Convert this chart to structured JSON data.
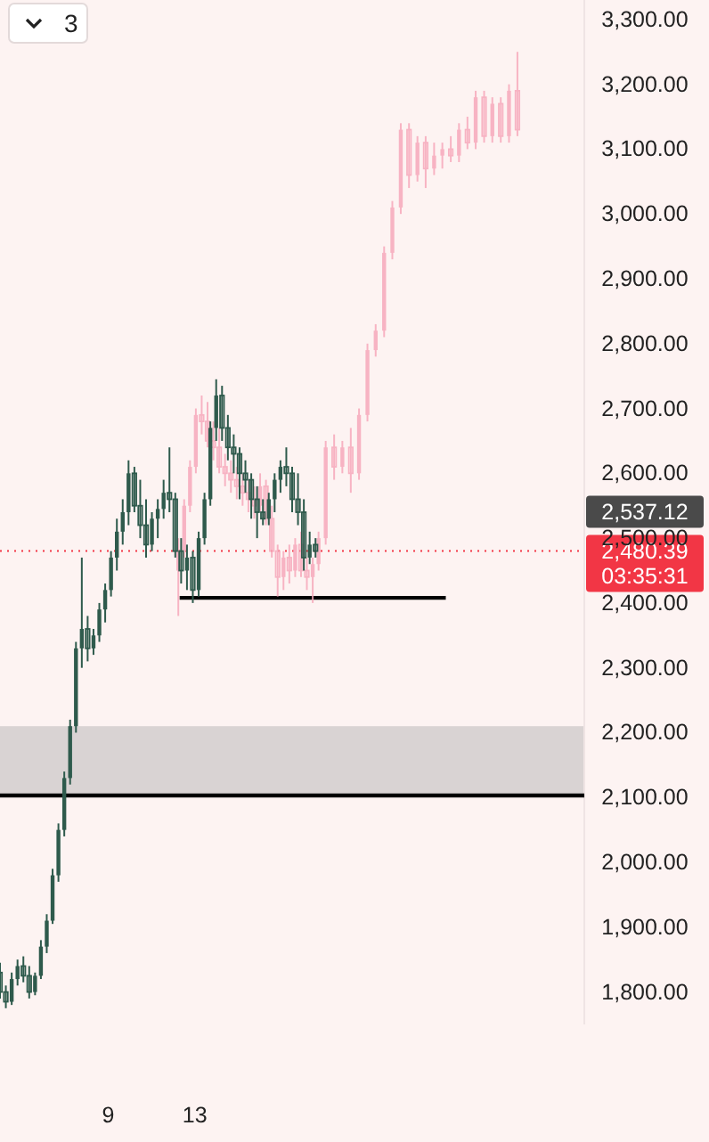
{
  "chart_data": {
    "type": "candlestick",
    "xlim": [
      4,
      31
    ],
    "xticks": [
      9,
      13
    ],
    "ylim": [
      1750,
      3330
    ],
    "yticks": [
      {
        "value": 1800,
        "label": "1,800.00"
      },
      {
        "value": 1900,
        "label": "1,900.00"
      },
      {
        "value": 2000,
        "label": "2,000.00"
      },
      {
        "value": 2100,
        "label": "2,100.00"
      },
      {
        "value": 2200,
        "label": "2,200.00"
      },
      {
        "value": 2300,
        "label": "2,300.00"
      },
      {
        "value": 2400,
        "label": "2,400.00"
      },
      {
        "value": 2500,
        "label": "2,500.00"
      },
      {
        "value": 2600,
        "label": "2,600.00"
      },
      {
        "value": 2700,
        "label": "2,700.00"
      },
      {
        "value": 2800,
        "label": "2,800.00"
      },
      {
        "value": 2900,
        "label": "2,900.00"
      },
      {
        "value": 3000,
        "label": "3,000.00"
      },
      {
        "value": 3100,
        "label": "3,100.00"
      },
      {
        "value": 3200,
        "label": "3,200.00"
      },
      {
        "value": 3300,
        "label": "3,300.00"
      }
    ],
    "grid": false,
    "bands": [
      {
        "axis": "y",
        "from": 2103,
        "to": 2210,
        "color": "#d9d3d3"
      }
    ],
    "ref_lines": [
      {
        "axis": "y",
        "value": 2103,
        "color": "#000000",
        "line_style": "solid"
      },
      {
        "axis": "y",
        "value": 2480.39,
        "label": "2,480.39",
        "color": "#f23645",
        "line_style": "dotted"
      }
    ],
    "annotations": [
      "3",
      "03:35:31",
      "2,537.12"
    ],
    "series": [
      {
        "color": "#f7a9bb",
        "x": [
          12.24,
          12.51,
          12.78,
          13.05,
          13.32,
          13.59,
          13.86,
          14.13,
          14.4,
          14.67,
          14.94,
          15.21,
          15.48,
          15.75,
          16.02,
          16.29,
          16.56,
          16.83,
          17.1,
          17.37,
          17.64,
          17.91,
          18.18,
          18.45,
          18.72,
          19.05,
          19.44,
          19.82,
          20.21,
          20.59,
          20.98,
          21.36,
          21.75,
          22.13,
          22.52,
          22.9,
          23.29,
          23.67,
          24.06,
          24.44,
          24.83,
          25.21,
          25.6,
          25.98,
          26.37,
          26.75,
          27.14,
          27.52,
          27.91
        ],
        "ohlc": [
          [
            2450,
            2500,
            2380,
            2480
          ],
          [
            2480,
            2560,
            2470,
            2550
          ],
          [
            2550,
            2620,
            2540,
            2610
          ],
          [
            2610,
            2700,
            2600,
            2690
          ],
          [
            2690,
            2720,
            2660,
            2680
          ],
          [
            2680,
            2710,
            2640,
            2650
          ],
          [
            2650,
            2680,
            2620,
            2640
          ],
          [
            2640,
            2670,
            2600,
            2610
          ],
          [
            2610,
            2630,
            2580,
            2600
          ],
          [
            2600,
            2620,
            2570,
            2590
          ],
          [
            2590,
            2610,
            2560,
            2580
          ],
          [
            2580,
            2600,
            2550,
            2570
          ],
          [
            2570,
            2590,
            2540,
            2560
          ],
          [
            2560,
            2580,
            2530,
            2550
          ],
          [
            2550,
            2600,
            2540,
            2580
          ],
          [
            2580,
            2590,
            2520,
            2530
          ],
          [
            2530,
            2550,
            2470,
            2480
          ],
          [
            2480,
            2490,
            2410,
            2440
          ],
          [
            2440,
            2480,
            2420,
            2470
          ],
          [
            2470,
            2490,
            2430,
            2450
          ],
          [
            2450,
            2500,
            2440,
            2490
          ],
          [
            2490,
            2510,
            2440,
            2450
          ],
          [
            2450,
            2470,
            2420,
            2440
          ],
          [
            2440,
            2470,
            2400,
            2460
          ],
          [
            2460,
            2510,
            2450,
            2500
          ],
          [
            2500,
            2650,
            2490,
            2640
          ],
          [
            2640,
            2660,
            2590,
            2610
          ],
          [
            2610,
            2650,
            2600,
            2640
          ],
          [
            2640,
            2670,
            2570,
            2600
          ],
          [
            2600,
            2700,
            2590,
            2690
          ],
          [
            2690,
            2800,
            2680,
            2790
          ],
          [
            2790,
            2830,
            2780,
            2820
          ],
          [
            2820,
            2950,
            2810,
            2940
          ],
          [
            2940,
            3020,
            2930,
            3010
          ],
          [
            3010,
            3140,
            3000,
            3130
          ],
          [
            3130,
            3140,
            3040,
            3060
          ],
          [
            3060,
            3120,
            3050,
            3110
          ],
          [
            3110,
            3120,
            3040,
            3070
          ],
          [
            3070,
            3110,
            3060,
            3090
          ],
          [
            3090,
            3110,
            3070,
            3100
          ],
          [
            3100,
            3120,
            3080,
            3090
          ],
          [
            3090,
            3140,
            3080,
            3130
          ],
          [
            3130,
            3150,
            3100,
            3110
          ],
          [
            3110,
            3190,
            3100,
            3180
          ],
          [
            3180,
            3190,
            3110,
            3120
          ],
          [
            3120,
            3180,
            3110,
            3170
          ],
          [
            3170,
            3180,
            3110,
            3120
          ],
          [
            3120,
            3200,
            3110,
            3190
          ],
          [
            3190,
            3250,
            3120,
            3130
          ]
        ]
      },
      {
        "color": "#2e5a4c",
        "x": [
          4,
          4.27,
          4.54,
          4.81,
          5.08,
          5.35,
          5.62,
          5.89,
          6.16,
          6.43,
          6.7,
          6.97,
          7.24,
          7.51,
          7.78,
          8.05,
          8.32,
          8.59,
          8.86,
          9.13,
          9.4,
          9.67,
          9.94,
          10.21,
          10.48,
          10.75,
          11.02,
          11.29,
          11.56,
          11.83,
          12.1,
          12.37,
          12.64,
          12.91,
          13.18,
          13.45,
          13.72,
          13.99,
          14.26,
          14.53,
          14.8,
          15.07,
          15.34,
          15.61,
          15.88,
          16.15,
          16.42,
          16.69,
          16.96,
          17.23,
          17.5,
          17.77,
          18.04,
          18.31,
          18.58
        ],
        "ohlc": [
          [
            1830,
            1845,
            1790,
            1800
          ],
          [
            1800,
            1810,
            1775,
            1785
          ],
          [
            1785,
            1830,
            1780,
            1820
          ],
          [
            1820,
            1850,
            1810,
            1840
          ],
          [
            1840,
            1855,
            1815,
            1825
          ],
          [
            1825,
            1840,
            1790,
            1800
          ],
          [
            1800,
            1830,
            1795,
            1825
          ],
          [
            1825,
            1880,
            1820,
            1870
          ],
          [
            1870,
            1920,
            1860,
            1910
          ],
          [
            1910,
            1990,
            1905,
            1980
          ],
          [
            1980,
            2060,
            1970,
            2050
          ],
          [
            2050,
            2140,
            2040,
            2130
          ],
          [
            2130,
            2220,
            2120,
            2210
          ],
          [
            2210,
            2340,
            2200,
            2330
          ],
          [
            2330,
            2470,
            2300,
            2360
          ],
          [
            2360,
            2380,
            2310,
            2330
          ],
          [
            2330,
            2360,
            2320,
            2350
          ],
          [
            2350,
            2400,
            2340,
            2390
          ],
          [
            2390,
            2430,
            2370,
            2420
          ],
          [
            2420,
            2480,
            2410,
            2470
          ],
          [
            2470,
            2530,
            2450,
            2510
          ],
          [
            2510,
            2560,
            2490,
            2540
          ],
          [
            2540,
            2620,
            2520,
            2600
          ],
          [
            2600,
            2610,
            2540,
            2550
          ],
          [
            2550,
            2590,
            2500,
            2520
          ],
          [
            2520,
            2560,
            2470,
            2490
          ],
          [
            2490,
            2540,
            2480,
            2530
          ],
          [
            2530,
            2560,
            2500,
            2545
          ],
          [
            2545,
            2590,
            2530,
            2570
          ],
          [
            2570,
            2640,
            2540,
            2560
          ],
          [
            2560,
            2570,
            2470,
            2480
          ],
          [
            2480,
            2500,
            2430,
            2450
          ],
          [
            2450,
            2490,
            2420,
            2470
          ],
          [
            2470,
            2480,
            2400,
            2420
          ],
          [
            2420,
            2510,
            2410,
            2500
          ],
          [
            2500,
            2570,
            2490,
            2560
          ],
          [
            2560,
            2680,
            2550,
            2670
          ],
          [
            2670,
            2745,
            2650,
            2720
          ],
          [
            2720,
            2735,
            2650,
            2670
          ],
          [
            2670,
            2690,
            2620,
            2640
          ],
          [
            2640,
            2660,
            2600,
            2630
          ],
          [
            2630,
            2640,
            2560,
            2600
          ],
          [
            2600,
            2620,
            2570,
            2590
          ],
          [
            2590,
            2600,
            2530,
            2560
          ],
          [
            2560,
            2580,
            2500,
            2540
          ],
          [
            2540,
            2560,
            2520,
            2530
          ],
          [
            2530,
            2570,
            2520,
            2560
          ],
          [
            2560,
            2600,
            2540,
            2590
          ],
          [
            2590,
            2620,
            2570,
            2610
          ],
          [
            2610,
            2640,
            2580,
            2600
          ],
          [
            2600,
            2610,
            2540,
            2560
          ],
          [
            2560,
            2600,
            2520,
            2540
          ],
          [
            2540,
            2560,
            2450,
            2470
          ],
          [
            2470,
            2510,
            2460,
            2490
          ],
          [
            2490,
            2500,
            2470,
            2480
          ]
        ]
      },
      {
        "type": "line",
        "color": "#000000",
        "x": [
          12.3,
          24.6
        ],
        "values": [
          2408,
          2408
        ]
      }
    ]
  }
}
